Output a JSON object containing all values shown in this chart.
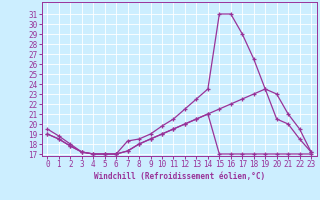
{
  "xlabel": "Windchill (Refroidissement éolien,°C)",
  "background_color": "#cceeff",
  "line_color": "#993399",
  "grid_color": "#ffffff",
  "hours": [
    0,
    1,
    2,
    3,
    4,
    5,
    6,
    7,
    8,
    9,
    10,
    11,
    12,
    13,
    14,
    15,
    16,
    17,
    18,
    19,
    20,
    21,
    22,
    23
  ],
  "line1": [
    19.5,
    18.8,
    18.0,
    17.2,
    17.0,
    17.0,
    17.0,
    18.3,
    18.5,
    19.0,
    19.8,
    20.5,
    21.5,
    22.5,
    23.5,
    31.0,
    31.0,
    29.0,
    26.5,
    23.5,
    20.5,
    20.0,
    18.5,
    17.2
  ],
  "line2": [
    19.0,
    18.5,
    17.8,
    17.2,
    17.0,
    17.0,
    17.0,
    17.3,
    18.0,
    18.5,
    19.0,
    19.5,
    20.0,
    20.5,
    21.0,
    21.5,
    22.0,
    22.5,
    23.0,
    23.5,
    23.0,
    21.0,
    19.5,
    17.2
  ],
  "line3": [
    19.0,
    18.5,
    17.8,
    17.2,
    17.0,
    17.0,
    17.0,
    17.3,
    18.0,
    18.5,
    19.0,
    19.5,
    20.0,
    20.5,
    21.0,
    17.0,
    17.0,
    17.0,
    17.0,
    17.0,
    17.0,
    17.0,
    17.0,
    17.0
  ],
  "ylim_min": 17,
  "ylim_max": 32,
  "xlim_min": 0,
  "xlim_max": 23,
  "yticks": [
    17,
    18,
    19,
    20,
    21,
    22,
    23,
    24,
    25,
    26,
    27,
    28,
    29,
    30,
    31
  ],
  "xticks": [
    0,
    1,
    2,
    3,
    4,
    5,
    6,
    7,
    8,
    9,
    10,
    11,
    12,
    13,
    14,
    15,
    16,
    17,
    18,
    19,
    20,
    21,
    22,
    23
  ],
  "tick_fontsize": 5.5,
  "xlabel_fontsize": 5.5
}
